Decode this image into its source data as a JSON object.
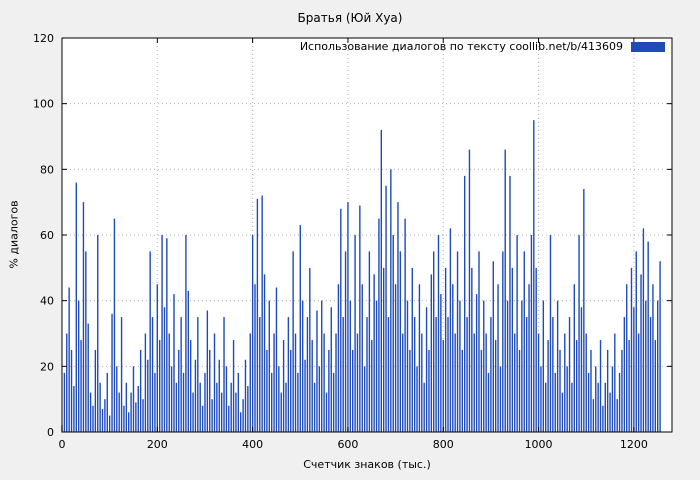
{
  "chart_data": {
    "type": "bar",
    "title": "Братья (Юй Хуа)",
    "xlabel": "Счетчик знаков (тыс.)",
    "ylabel": "% диалогов",
    "legend": "Использование диалогов по тексту  coollib.net/b/413609",
    "legend_position": "top-right-inside",
    "grid": true,
    "xlim": [
      0,
      1280
    ],
    "ylim": [
      0,
      120
    ],
    "x_ticks": [
      0,
      200,
      400,
      600,
      800,
      1000,
      1200
    ],
    "y_ticks": [
      0,
      20,
      40,
      60,
      80,
      100,
      120
    ],
    "x_start": 0,
    "x_step": 5,
    "values": [
      2,
      18,
      30,
      44,
      25,
      14,
      76,
      40,
      28,
      70,
      55,
      33,
      12,
      8,
      25,
      60,
      15,
      7,
      10,
      18,
      5,
      36,
      65,
      20,
      12,
      35,
      8,
      15,
      6,
      12,
      20,
      9,
      14,
      25,
      10,
      30,
      22,
      55,
      35,
      18,
      45,
      28,
      60,
      38,
      59,
      30,
      20,
      42,
      15,
      25,
      35,
      18,
      60,
      43,
      28,
      12,
      22,
      35,
      15,
      8,
      18,
      37,
      25,
      10,
      30,
      15,
      22,
      12,
      35,
      20,
      8,
      15,
      28,
      12,
      18,
      6,
      10,
      22,
      14,
      30,
      60,
      45,
      71,
      35,
      72,
      48,
      25,
      40,
      18,
      30,
      44,
      20,
      12,
      28,
      15,
      35,
      25,
      55,
      30,
      18,
      63,
      40,
      22,
      35,
      50,
      28,
      15,
      37,
      20,
      40,
      30,
      12,
      25,
      38,
      18,
      30,
      45,
      68,
      35,
      55,
      70,
      40,
      25,
      60,
      30,
      69,
      45,
      20,
      35,
      55,
      28,
      48,
      40,
      65,
      92,
      50,
      75,
      35,
      80,
      60,
      45,
      70,
      55,
      30,
      65,
      40,
      25,
      50,
      35,
      20,
      45,
      30,
      15,
      38,
      25,
      48,
      55,
      35,
      60,
      42,
      28,
      50,
      35,
      62,
      45,
      30,
      55,
      40,
      25,
      78,
      35,
      86,
      50,
      30,
      42,
      55,
      25,
      40,
      30,
      18,
      35,
      52,
      28,
      45,
      20,
      55,
      86,
      40,
      78,
      50,
      30,
      60,
      25,
      40,
      55,
      35,
      45,
      60,
      95,
      50,
      30,
      20,
      40,
      15,
      28,
      60,
      35,
      18,
      40,
      25,
      12,
      30,
      20,
      35,
      15,
      45,
      28,
      60,
      38,
      74,
      30,
      18,
      25,
      10,
      20,
      15,
      28,
      8,
      15,
      25,
      12,
      20,
      30,
      10,
      18,
      25,
      35,
      45,
      28,
      50,
      38,
      55,
      30,
      48,
      62,
      40,
      58,
      35,
      45,
      28,
      40,
      52
    ],
    "colors": {
      "bar": "#1e4bb8",
      "grid": "#b4b4b4",
      "border": "#000000",
      "background": "#f0f0f0",
      "plot_background": "#ffffff"
    }
  }
}
